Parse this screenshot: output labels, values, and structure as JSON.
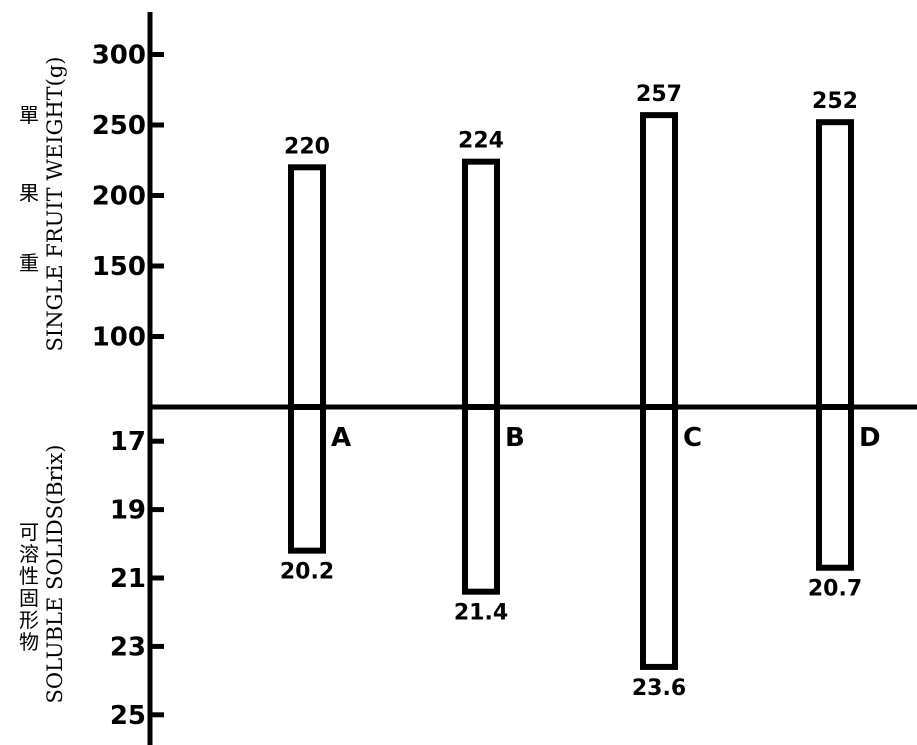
{
  "chart_data": {
    "type": "bar",
    "categories": [
      "A",
      "B",
      "C",
      "D"
    ],
    "top_panel": {
      "ylabel": "SINGLE FRUIT WEIGHT(g)",
      "ylabel_cjk": "單果重",
      "yticks": [
        100,
        150,
        200,
        250,
        300
      ],
      "values": [
        220,
        224,
        257,
        252
      ]
    },
    "bottom_panel": {
      "ylabel": "SOLUBLE SOLIDS(Brix)",
      "ylabel_cjk": "可溶性固形物",
      "yticks": [
        17,
        19,
        21,
        23,
        25
      ],
      "values": [
        20.2,
        21.4,
        23.6,
        20.7
      ]
    },
    "grid": false,
    "legend": "none"
  }
}
